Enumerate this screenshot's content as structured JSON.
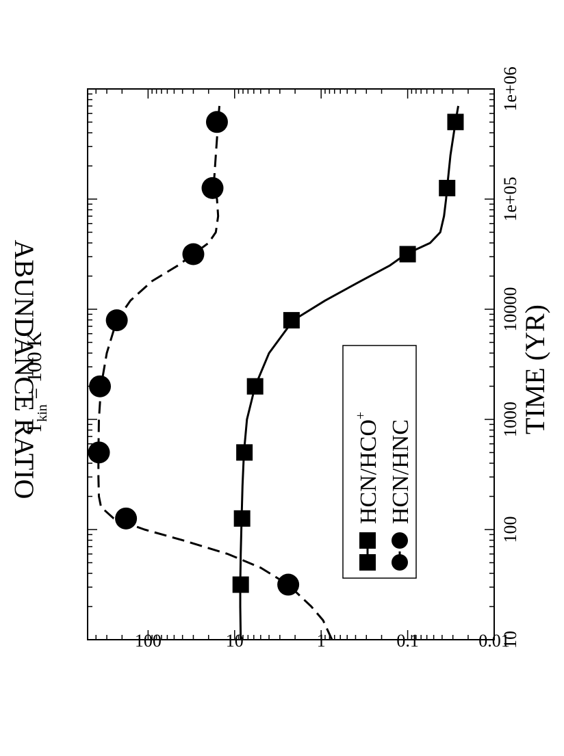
{
  "chart_data": {
    "type": "line",
    "title": {
      "prefix": "T",
      "subscript": "kin",
      "suffix": " = 100 K"
    },
    "xlabel": "TIME (YR)",
    "ylabel": "ABUNDANCE RATIO",
    "xscale": "log",
    "yscale": "log",
    "xlim": [
      10,
      1000000
    ],
    "ylim": [
      0.01,
      500
    ],
    "x_ticks": [
      {
        "value": 10,
        "label": "10"
      },
      {
        "value": 100,
        "label": "100"
      },
      {
        "value": 1000,
        "label": "1000"
      },
      {
        "value": 10000,
        "label": "10000"
      },
      {
        "value": 100000,
        "label": "1e+05"
      },
      {
        "value": 1000000,
        "label": "1e+06"
      }
    ],
    "y_ticks": [
      {
        "value": 0.01,
        "label": "0.01"
      },
      {
        "value": 0.1,
        "label": "0.1"
      },
      {
        "value": 1,
        "label": "1"
      },
      {
        "value": 10,
        "label": "10"
      },
      {
        "value": 100,
        "label": "100"
      }
    ],
    "grid": false,
    "legend_position": "lower-middle",
    "series": [
      {
        "name": "HCN/HCO",
        "name_superscript": "+",
        "line_style": "solid",
        "marker": "square",
        "color": "#000000",
        "curve": [
          [
            10,
            8.5
          ],
          [
            20,
            8.6
          ],
          [
            31.6,
            8.6
          ],
          [
            60,
            8.5
          ],
          [
            126,
            8.3
          ],
          [
            250,
            8.1
          ],
          [
            501,
            7.8
          ],
          [
            1000,
            7.2
          ],
          [
            1995,
            5.8
          ],
          [
            4000,
            4.0
          ],
          [
            7943,
            2.1
          ],
          [
            12000,
            0.9
          ],
          [
            18000,
            0.35
          ],
          [
            25000,
            0.16
          ],
          [
            31623,
            0.105
          ],
          [
            40000,
            0.055
          ],
          [
            50000,
            0.042
          ],
          [
            70000,
            0.038
          ],
          [
            100000,
            0.036
          ],
          [
            125893,
            0.035
          ],
          [
            250000,
            0.032
          ],
          [
            501187,
            0.028
          ],
          [
            700000,
            0.026
          ]
        ],
        "markers": [
          [
            31.6,
            8.5
          ],
          [
            126,
            8.2
          ],
          [
            501,
            7.7
          ],
          [
            1995,
            5.8
          ],
          [
            7943,
            2.2
          ],
          [
            31623,
            0.1
          ],
          [
            125893,
            0.035
          ],
          [
            501187,
            0.028
          ]
        ]
      },
      {
        "name": "HCN/HNC",
        "line_style": "dashed",
        "marker": "circle",
        "color": "#000000",
        "curve": [
          [
            10,
            0.75
          ],
          [
            15,
            0.95
          ],
          [
            20,
            1.3
          ],
          [
            31.6,
            2.4
          ],
          [
            45,
            5
          ],
          [
            60,
            12
          ],
          [
            80,
            40
          ],
          [
            100,
            110
          ],
          [
            126,
            250
          ],
          [
            160,
            350
          ],
          [
            200,
            370
          ],
          [
            300,
            375
          ],
          [
            501,
            375
          ],
          [
            1000,
            370
          ],
          [
            1995,
            350
          ],
          [
            4000,
            300
          ],
          [
            7943,
            230
          ],
          [
            12000,
            160
          ],
          [
            18000,
            90
          ],
          [
            25000,
            45
          ],
          [
            31623,
            30
          ],
          [
            40000,
            20
          ],
          [
            50000,
            16.5
          ],
          [
            70000,
            15.5
          ],
          [
            100000,
            16
          ],
          [
            125893,
            17.5
          ],
          [
            250000,
            16.5
          ],
          [
            501187,
            15.5
          ],
          [
            700000,
            15
          ]
        ],
        "markers": [
          [
            31.6,
            2.4
          ],
          [
            126,
            180
          ],
          [
            501,
            370
          ],
          [
            1995,
            360
          ],
          [
            7943,
            230
          ],
          [
            31623,
            30
          ],
          [
            125893,
            18
          ],
          [
            501187,
            16
          ]
        ]
      }
    ]
  }
}
